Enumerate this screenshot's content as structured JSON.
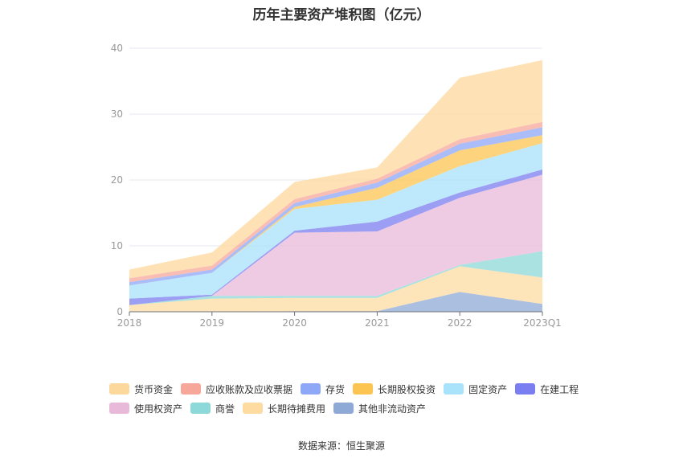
{
  "chart_data": {
    "type": "area",
    "title": "历年主要资产堆积图（亿元）",
    "categories": [
      "2018",
      "2019",
      "2020",
      "2021",
      "2022",
      "2023Q1"
    ],
    "ylim": [
      0,
      40
    ],
    "yticks": [
      0,
      10,
      20,
      30,
      40
    ],
    "grid": true,
    "legend_position": "bottom",
    "series": [
      {
        "name": "其他非流动资产",
        "color": "#8fa9d6",
        "values": [
          0,
          0,
          0.1,
          0.1,
          3.0,
          1.2
        ]
      },
      {
        "name": "长期待摊费用",
        "color": "#fddba1",
        "values": [
          1.0,
          2.0,
          2.0,
          2.0,
          3.9,
          4.0
        ]
      },
      {
        "name": "商誉",
        "color": "#8dd8d8",
        "values": [
          0,
          0.4,
          0.3,
          0.3,
          0.2,
          4.0
        ]
      },
      {
        "name": "使用权资产",
        "color": "#e8b9d9",
        "values": [
          0,
          0,
          9.6,
          9.8,
          10.2,
          11.6
        ]
      },
      {
        "name": "在建工程",
        "color": "#7b7ef0",
        "values": [
          1.0,
          0.2,
          0.3,
          1.5,
          0.8,
          0.8
        ]
      },
      {
        "name": "固定资产",
        "color": "#a8e2fb",
        "values": [
          2.0,
          3.3,
          3.3,
          3.3,
          4.0,
          4.0
        ]
      },
      {
        "name": "长期股权投资",
        "color": "#fcc552",
        "values": [
          0,
          0,
          0.3,
          1.8,
          2.4,
          1.2
        ]
      },
      {
        "name": "存货",
        "color": "#8ea7f6",
        "values": [
          0.5,
          0.5,
          0.6,
          0.8,
          1.0,
          1.2
        ]
      },
      {
        "name": "应收账款及应收票据",
        "color": "#f7a799",
        "values": [
          0.6,
          0.6,
          0.6,
          0.6,
          0.7,
          0.8
        ]
      },
      {
        "name": "货币资金",
        "color": "#fdd89c",
        "values": [
          1.3,
          2.0,
          2.6,
          1.7,
          9.3,
          9.4
        ]
      }
    ],
    "legend_order": [
      "货币资金",
      "应收账款及应收票据",
      "存货",
      "长期股权投资",
      "固定资产",
      "在建工程",
      "使用权资产",
      "商誉",
      "长期待摊费用",
      "其他非流动资产"
    ],
    "source": "数据来源：恒生聚源"
  }
}
